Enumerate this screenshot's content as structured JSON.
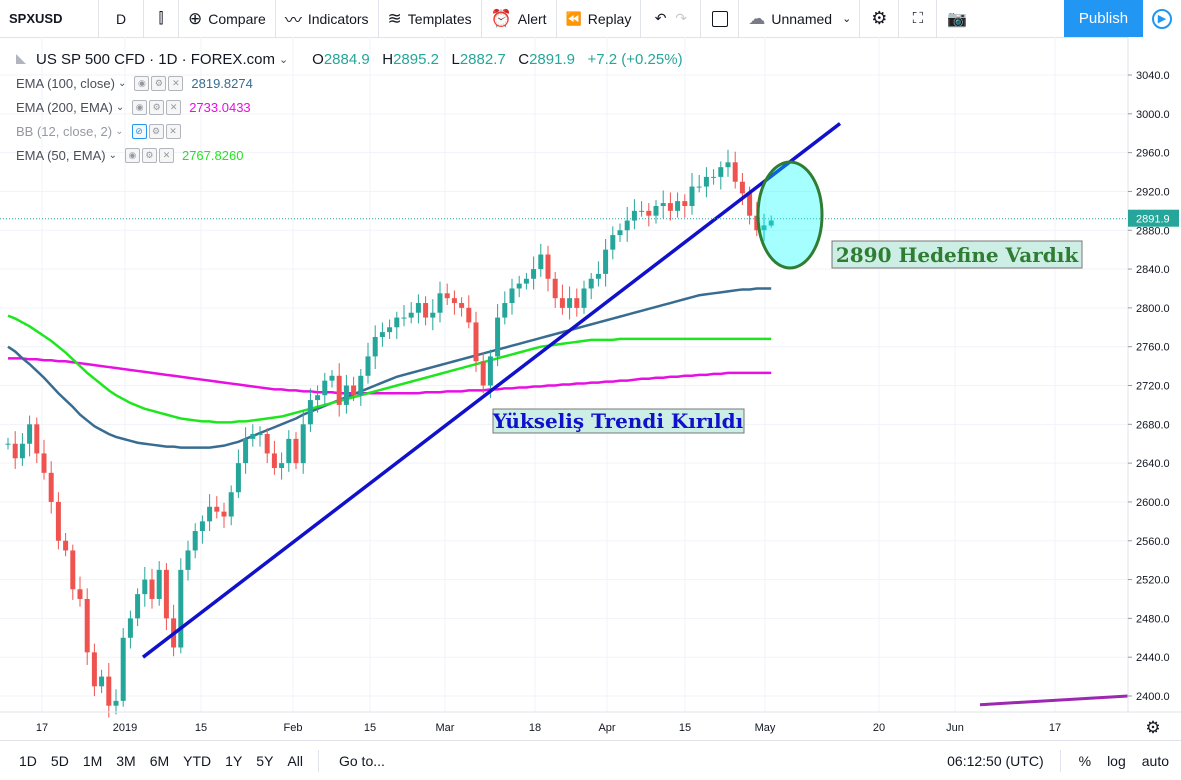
{
  "toolbar": {
    "symbol": "SPXUSD",
    "interval": "D",
    "compare": "Compare",
    "indicators": "Indicators",
    "templates": "Templates",
    "alert": "Alert",
    "replay": "Replay",
    "layout_name": "Unnamed",
    "publish": "Publish"
  },
  "legend": {
    "title": "US SP 500 CFD · 1D · FOREX.com",
    "open_label": "O",
    "open": "2884.9",
    "high_label": "H",
    "high": "2895.2",
    "low_label": "L",
    "low": "2882.7",
    "close_label": "C",
    "close": "2891.9",
    "change": "+7.2 (+0.25%)",
    "indicators": [
      {
        "label": "EMA (100, close)",
        "value": "2819.8274",
        "color": "#386d91"
      },
      {
        "label": "EMA (200, EMA)",
        "value": "2733.0433",
        "color": "#e70fe2"
      },
      {
        "label": "BB (12, close, 2)",
        "value": "",
        "color": "#9598a1"
      },
      {
        "label": "EMA (50, EMA)",
        "value": "2767.8260",
        "color": "#1ee61e"
      }
    ]
  },
  "price_axis": {
    "ticks": [
      "3040.0",
      "3000.0",
      "2960.0",
      "2920.0",
      "2880.0",
      "2840.0",
      "2800.0",
      "2760.0",
      "2720.0",
      "2680.0",
      "2640.0",
      "2600.0",
      "2560.0",
      "2520.0",
      "2480.0",
      "2440.0",
      "2400.0"
    ],
    "current_price": "2891.9"
  },
  "time_axis": {
    "ticks": [
      "17",
      "2019",
      "15",
      "Feb",
      "15",
      "Mar",
      "18",
      "Apr",
      "15",
      "May",
      "20",
      "Jun",
      "17"
    ]
  },
  "annotations": {
    "target": "2890 Hedefine Vardık",
    "trend_break": "Yükseliş Trendi Kırıldı"
  },
  "bottom": {
    "ranges": [
      "1D",
      "5D",
      "1M",
      "3M",
      "6M",
      "YTD",
      "1Y",
      "5Y",
      "All"
    ],
    "goto": "Go to...",
    "clock": "06:12:50 (UTC)",
    "percent": "%",
    "log": "log",
    "auto": "auto"
  },
  "chart_data": {
    "type": "candlestick",
    "ylim": [
      2380,
      3060
    ],
    "colors": {
      "up": "#26a69a",
      "down": "#ef5350",
      "ema100": "#386d91",
      "ema200": "#e70fe2",
      "ema50": "#1ee61e",
      "trend": "#1111cc",
      "bb": "#9c27b0"
    },
    "ohlc_visible": {
      "open": 2884.9,
      "high": 2895.2,
      "low": 2882.7,
      "close": 2891.9
    },
    "closes": [
      2660,
      2645,
      2660,
      2680,
      2650,
      2630,
      2600,
      2560,
      2550,
      2510,
      2500,
      2445,
      2410,
      2420,
      2390,
      2395,
      2460,
      2480,
      2505,
      2520,
      2500,
      2530,
      2480,
      2450,
      2530,
      2550,
      2570,
      2580,
      2595,
      2590,
      2585,
      2610,
      2640,
      2665,
      2670,
      2670,
      2650,
      2635,
      2640,
      2665,
      2640,
      2680,
      2705,
      2710,
      2725,
      2730,
      2700,
      2720,
      2710,
      2730,
      2750,
      2770,
      2775,
      2780,
      2790,
      2790,
      2795,
      2805,
      2790,
      2795,
      2815,
      2810,
      2805,
      2800,
      2785,
      2745,
      2720,
      2750,
      2790,
      2805,
      2820,
      2825,
      2830,
      2840,
      2855,
      2830,
      2810,
      2800,
      2810,
      2800,
      2820,
      2830,
      2835,
      2860,
      2875,
      2880,
      2890,
      2900,
      2900,
      2895,
      2905,
      2908,
      2900,
      2910,
      2905,
      2925,
      2925,
      2935,
      2935,
      2945,
      2950,
      2930,
      2918,
      2895,
      2880,
      2885,
      2890
    ],
    "ema100": [
      2760,
      2755,
      2748,
      2742,
      2735,
      2728,
      2720,
      2712,
      2705,
      2698,
      2690,
      2684,
      2678,
      2674,
      2670,
      2667,
      2665,
      2663,
      2661,
      2660,
      2659,
      2658,
      2657,
      2657,
      2656,
      2656,
      2656,
      2656,
      2656,
      2657,
      2658,
      2660,
      2662,
      2665,
      2668,
      2671,
      2674,
      2677,
      2680,
      2683,
      2686,
      2690,
      2693,
      2696,
      2699,
      2702,
      2705,
      2708,
      2711,
      2714,
      2717,
      2720,
      2723,
      2726,
      2729,
      2731,
      2733,
      2735,
      2737,
      2739,
      2741,
      2743,
      2745,
      2747,
      2749,
      2751,
      2753,
      2755,
      2757,
      2759,
      2761,
      2763,
      2765,
      2767,
      2769,
      2771,
      2773,
      2775,
      2777,
      2779,
      2781,
      2783,
      2785,
      2787,
      2789,
      2791,
      2793,
      2795,
      2797,
      2799,
      2801,
      2803,
      2805,
      2807,
      2809,
      2811,
      2813,
      2814,
      2815,
      2816,
      2817,
      2818,
      2819,
      2819,
      2820,
      2820,
      2820
    ],
    "ema200": [
      2748,
      2748,
      2748,
      2747,
      2747,
      2746,
      2746,
      2745,
      2745,
      2744,
      2743,
      2742,
      2741,
      2740,
      2739,
      2738,
      2737,
      2736,
      2735,
      2734,
      2733,
      2732,
      2731,
      2730,
      2729,
      2728,
      2727,
      2726,
      2725,
      2724,
      2723,
      2722,
      2721,
      2720,
      2719,
      2718,
      2717,
      2716,
      2716,
      2715,
      2715,
      2714,
      2714,
      2713,
      2713,
      2713,
      2712,
      2712,
      2712,
      2712,
      2712,
      2712,
      2712,
      2712,
      2712,
      2712,
      2712,
      2712,
      2713,
      2713,
      2713,
      2714,
      2714,
      2714,
      2715,
      2715,
      2715,
      2716,
      2716,
      2717,
      2717,
      2718,
      2718,
      2719,
      2719,
      2720,
      2720,
      2721,
      2721,
      2722,
      2722,
      2723,
      2723,
      2724,
      2724,
      2725,
      2725,
      2726,
      2727,
      2727,
      2728,
      2728,
      2729,
      2729,
      2730,
      2730,
      2731,
      2731,
      2732,
      2732,
      2733,
      2733,
      2733,
      2733,
      2733,
      2733,
      2733
    ],
    "ema50": [
      2792,
      2789,
      2785,
      2781,
      2776,
      2771,
      2766,
      2760,
      2754,
      2747,
      2740,
      2733,
      2727,
      2721,
      2715,
      2710,
      2706,
      2702,
      2699,
      2696,
      2694,
      2692,
      2690,
      2688,
      2686,
      2685,
      2684,
      2683,
      2683,
      2682,
      2682,
      2682,
      2683,
      2683,
      2684,
      2685,
      2686,
      2687,
      2688,
      2690,
      2692,
      2694,
      2696,
      2698,
      2700,
      2702,
      2704,
      2706,
      2708,
      2710,
      2712,
      2714,
      2716,
      2718,
      2720,
      2722,
      2724,
      2726,
      2728,
      2730,
      2732,
      2734,
      2736,
      2738,
      2740,
      2742,
      2744,
      2746,
      2748,
      2750,
      2752,
      2754,
      2756,
      2758,
      2760,
      2761,
      2762,
      2763,
      2764,
      2765,
      2766,
      2767,
      2767,
      2767,
      2767,
      2768,
      2768,
      2768,
      2768,
      2768,
      2768,
      2768,
      2768,
      2768,
      2768,
      2768,
      2768,
      2768,
      2768,
      2768,
      2768,
      2768,
      2768,
      2768,
      2768,
      2768,
      2768
    ],
    "trendline": {
      "from": {
        "index": 20,
        "price": 2440
      },
      "to": {
        "index": 120,
        "price": 2990
      }
    },
    "bb_line": {
      "from": {
        "index": 140,
        "price": 2391
      },
      "to": {
        "index": 160,
        "price": 2400
      }
    }
  }
}
